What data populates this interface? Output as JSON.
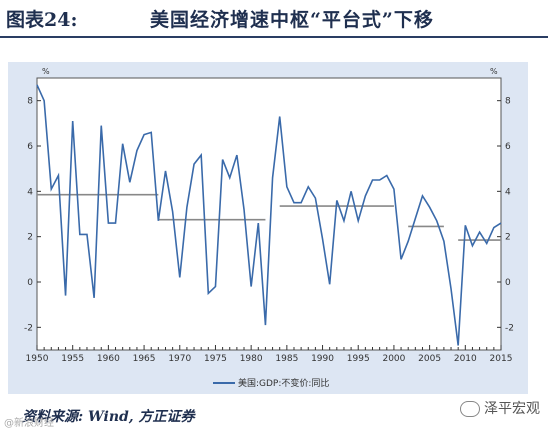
{
  "header": {
    "figure_label": "图表24:",
    "title": "美国经济增速中枢“平台式”下移"
  },
  "footer": {
    "source": "资料来源: Wind, 方正证券",
    "watermark": "泽平宏观",
    "site_mark": "@新浪财经"
  },
  "colors": {
    "series": "#3a6aaa",
    "platform": "#888888",
    "plot_bg": "#dde6f3",
    "title": "#1f2f4f"
  },
  "chart_data": {
    "type": "line",
    "unit_label": "%",
    "xlim": [
      1950,
      2015
    ],
    "ylim": [
      -3,
      9
    ],
    "x_ticks": [
      1950,
      1955,
      1960,
      1965,
      1970,
      1975,
      1980,
      1985,
      1990,
      1995,
      2000,
      2005,
      2010,
      2015
    ],
    "y_ticks": [
      -2,
      0,
      2,
      4,
      6,
      8
    ],
    "legend_position": "bottom-center",
    "grid": false,
    "series": [
      {
        "name": "美国:GDP:不变价:同比",
        "x": [
          1950,
          1951,
          1952,
          1953,
          1954,
          1955,
          1956,
          1957,
          1958,
          1959,
          1960,
          1961,
          1962,
          1963,
          1964,
          1965,
          1966,
          1967,
          1968,
          1969,
          1970,
          1971,
          1972,
          1973,
          1974,
          1975,
          1976,
          1977,
          1978,
          1979,
          1980,
          1981,
          1982,
          1983,
          1984,
          1985,
          1986,
          1987,
          1988,
          1989,
          1990,
          1991,
          1992,
          1993,
          1994,
          1995,
          1996,
          1997,
          1998,
          1999,
          2000,
          2001,
          2002,
          2003,
          2004,
          2005,
          2006,
          2007,
          2008,
          2009,
          2010,
          2011,
          2012,
          2013,
          2014,
          2015
        ],
        "values": [
          8.7,
          8.0,
          4.1,
          4.7,
          -0.6,
          7.1,
          2.1,
          2.1,
          -0.7,
          6.9,
          2.6,
          2.6,
          6.1,
          4.4,
          5.8,
          6.5,
          6.6,
          2.7,
          4.9,
          3.1,
          0.2,
          3.3,
          5.2,
          5.6,
          -0.5,
          -0.2,
          5.4,
          4.6,
          5.6,
          3.2,
          -0.2,
          2.6,
          -1.9,
          4.6,
          7.3,
          4.2,
          3.5,
          3.5,
          4.2,
          3.7,
          1.9,
          -0.1,
          3.6,
          2.7,
          4.0,
          2.7,
          3.8,
          4.5,
          4.5,
          4.7,
          4.1,
          1.0,
          1.8,
          2.8,
          3.8,
          3.3,
          2.7,
          1.8,
          -0.3,
          -2.8,
          2.5,
          1.6,
          2.2,
          1.7,
          2.4,
          2.6
        ]
      }
    ],
    "platforms": [
      {
        "x_start": 1950,
        "x_end": 1967,
        "value": 3.85
      },
      {
        "x_start": 1967,
        "x_end": 1982,
        "value": 2.75
      },
      {
        "x_start": 1984,
        "x_end": 2000,
        "value": 3.35
      },
      {
        "x_start": 2002,
        "x_end": 2007,
        "value": 2.45
      },
      {
        "x_start": 2009,
        "x_end": 2015,
        "value": 1.85
      }
    ]
  }
}
